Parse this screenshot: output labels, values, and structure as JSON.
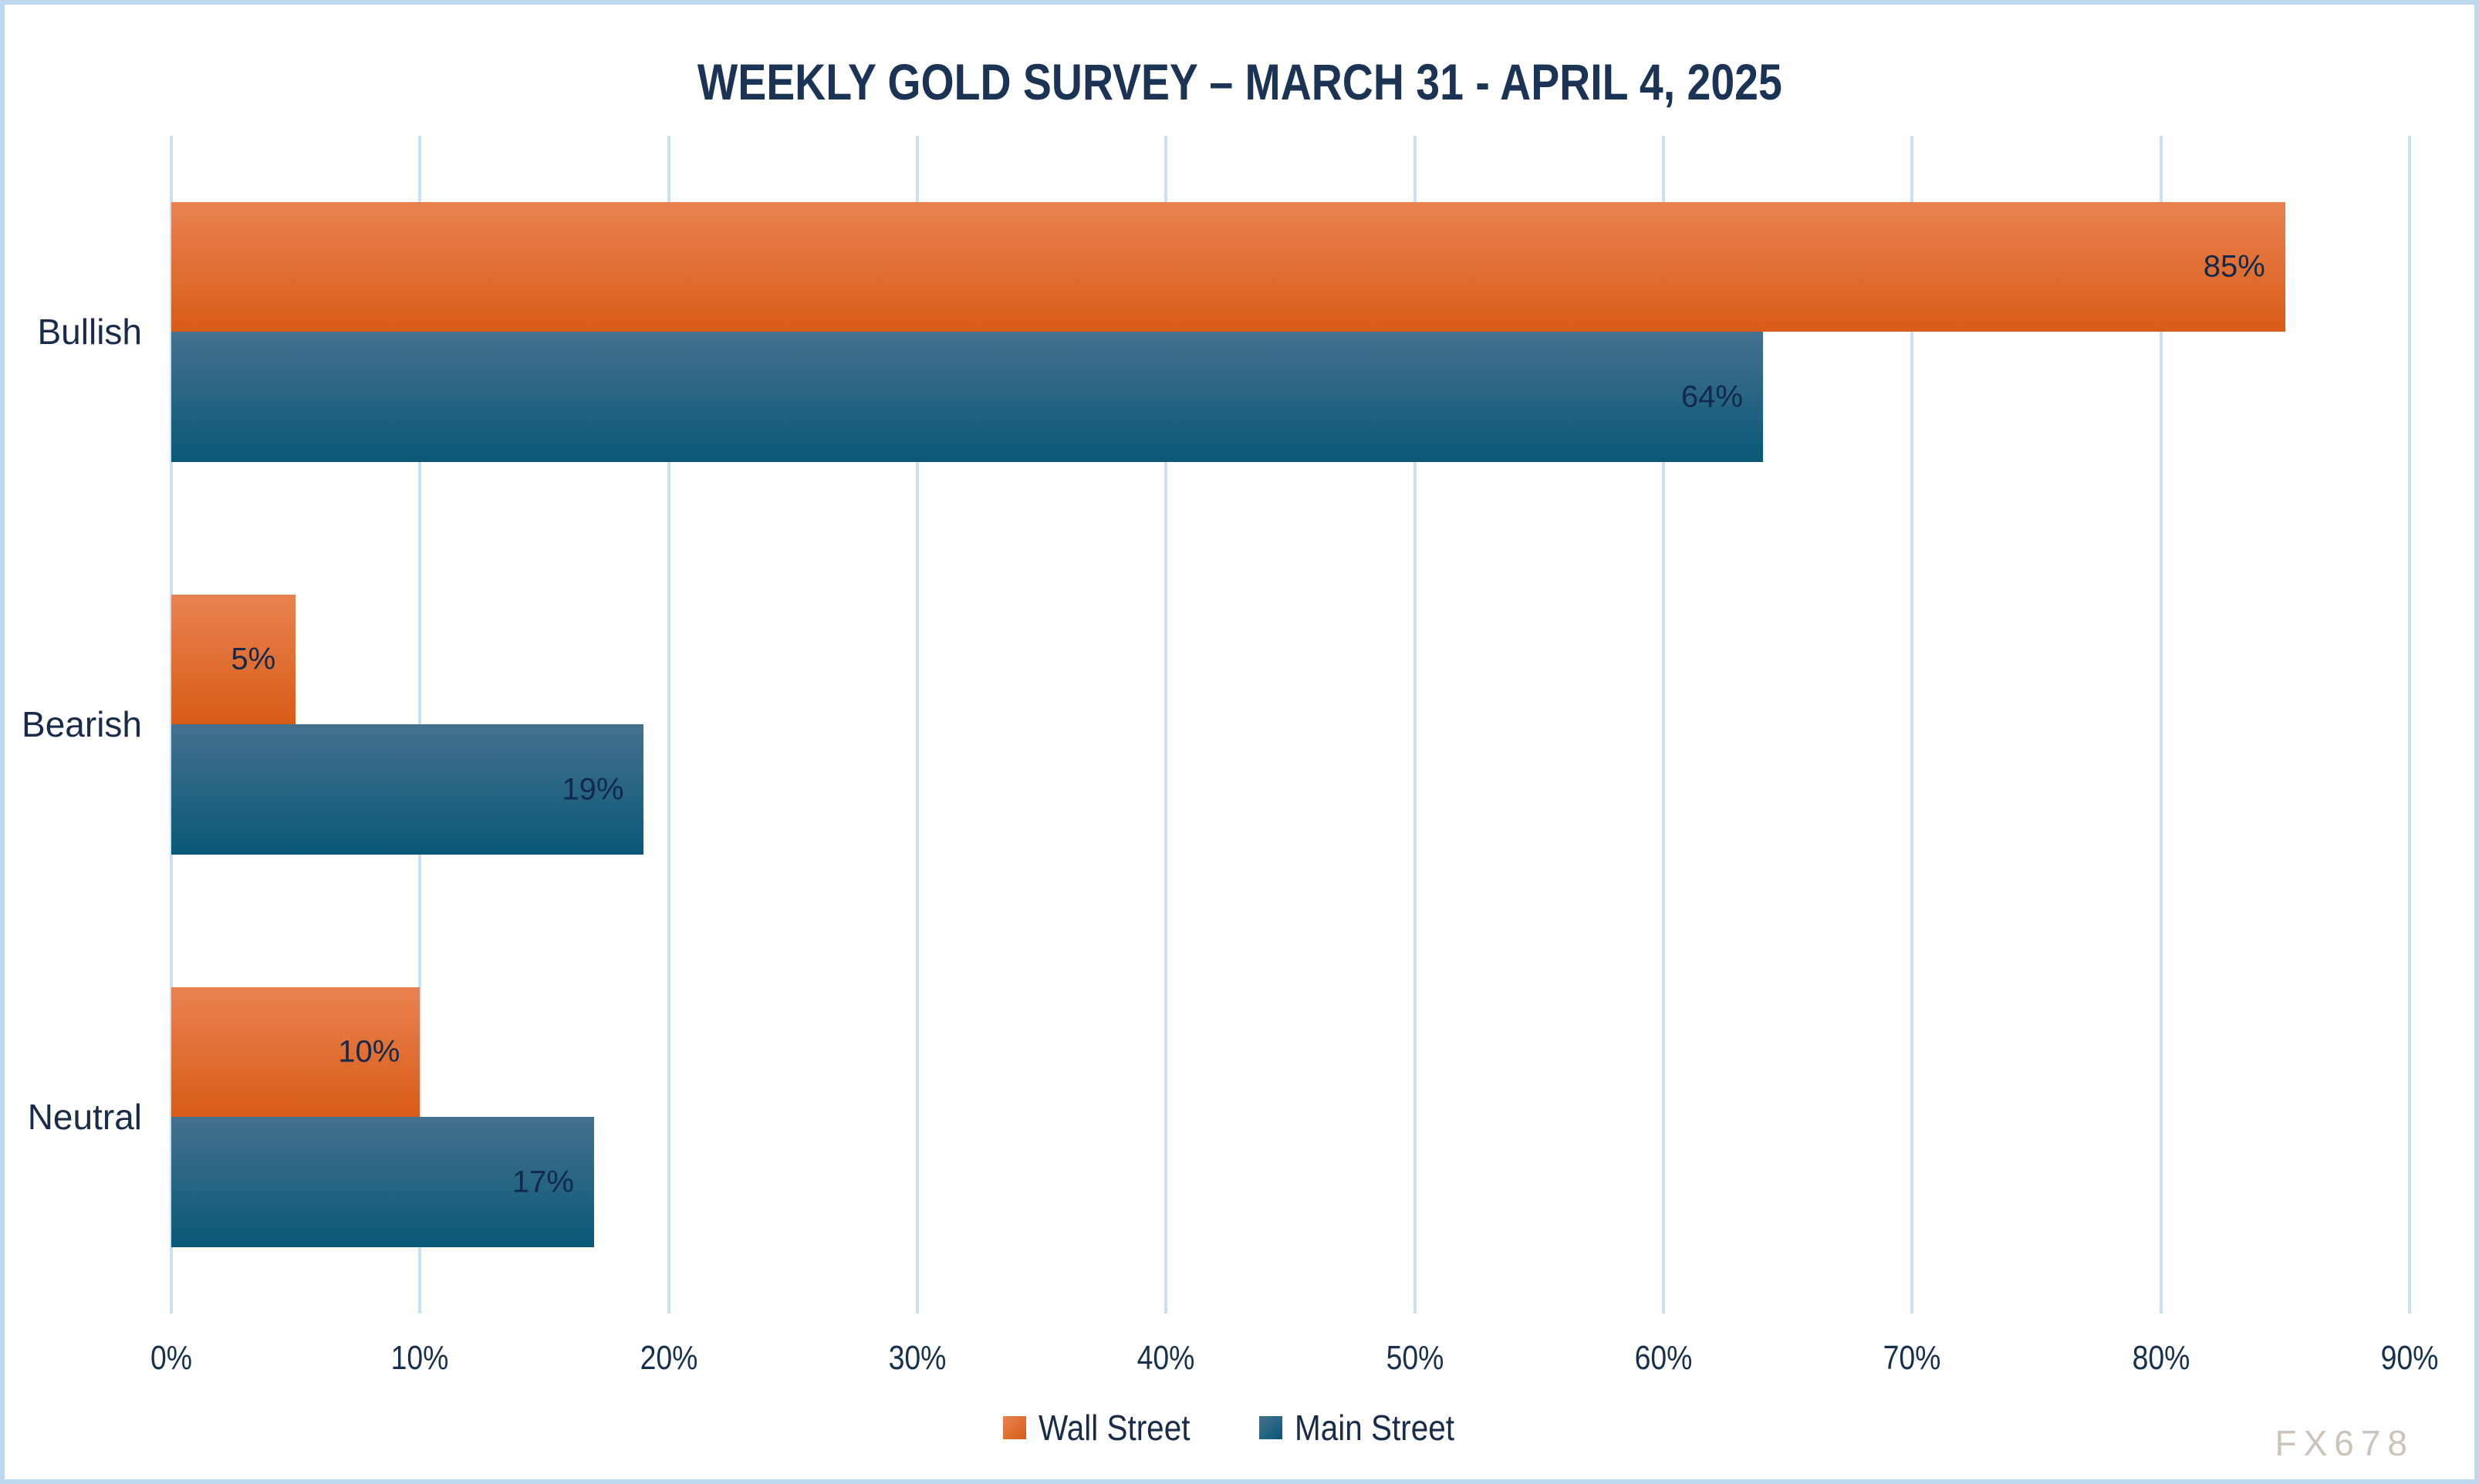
{
  "watermark": "FX678",
  "colors": {
    "frame": "#BDD7EE",
    "gridline": "#CBE0F2",
    "text_navy": "#1A2B49",
    "title_navy": "#1B3455",
    "wall_street_top": "#E98251",
    "wall_street_bottom": "#D85C17",
    "main_street_top": "#45718E",
    "main_street_bottom": "#095878",
    "watermark_gray": "#CCC4BA"
  },
  "chart_data": {
    "type": "bar",
    "orientation": "horizontal",
    "title": "WEEKLY GOLD SURVEY – MARCH 31 - APRIL 4, 2025",
    "categories": [
      "Bullish",
      "Bearish",
      "Neutral"
    ],
    "series": [
      {
        "name": "Wall Street",
        "values": [
          85,
          5,
          10
        ],
        "color_top": "#E98251",
        "color_bottom": "#D85C17"
      },
      {
        "name": "Main Street",
        "values": [
          64,
          19,
          17
        ],
        "color_top": "#45718E",
        "color_bottom": "#095878"
      }
    ],
    "data_labels": [
      "85%",
      "5%",
      "10%",
      "64%",
      "19%",
      "17%"
    ],
    "value_suffix": "%",
    "x_ticks": [
      "0%",
      "10%",
      "20%",
      "30%",
      "40%",
      "50%",
      "60%",
      "70%",
      "80%",
      "90%"
    ],
    "xlim": [
      0,
      90
    ],
    "grid": true,
    "legend_position": "bottom",
    "data_label_position": "inside-end"
  }
}
